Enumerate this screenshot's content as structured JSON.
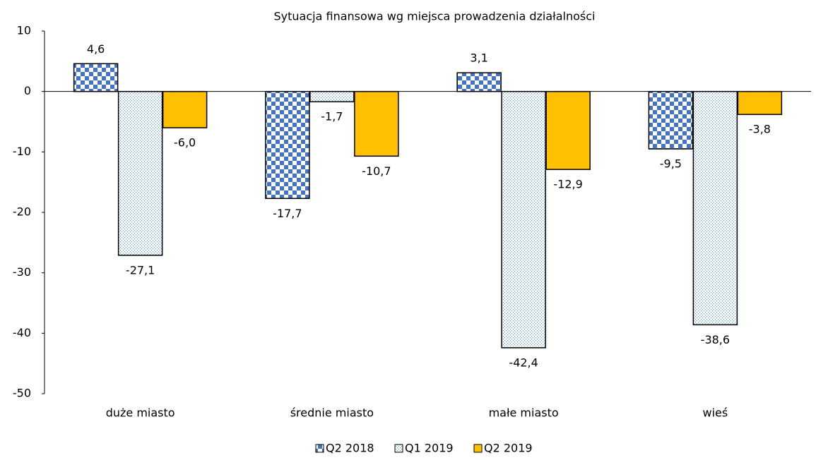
{
  "chart_data": {
    "type": "bar",
    "title": "Sytuacja finansowa wg miejsca prowadzenia działalności",
    "categories": [
      "duże miasto",
      "średnie miasto",
      "małe miasto",
      "wieś"
    ],
    "series": [
      {
        "name": "Q2 2018",
        "color": "#4472c4",
        "pattern": "checker",
        "values": [
          4.6,
          -17.7,
          3.1,
          -9.5
        ],
        "value_labels": [
          "4,6",
          "-17,7",
          "3,1",
          "-9,5"
        ]
      },
      {
        "name": "Q1 2019",
        "color": "#5b9bd5",
        "pattern": "dots",
        "values": [
          -27.1,
          -1.7,
          -42.4,
          -38.6
        ],
        "value_labels": [
          "-27,1",
          "-1,7",
          "-42,4",
          "-38,6"
        ]
      },
      {
        "name": "Q2 2019",
        "color": "#ffc000",
        "pattern": "solid",
        "values": [
          -6.0,
          -10.7,
          -12.9,
          -3.8
        ],
        "value_labels": [
          "-6,0",
          "-10,7",
          "-12,9",
          "-3,8"
        ]
      }
    ],
    "ylim": [
      -50,
      10
    ],
    "yticks": [
      -50,
      -40,
      -30,
      -20,
      -10,
      0,
      10
    ],
    "grid": false,
    "legend": "bottom"
  }
}
